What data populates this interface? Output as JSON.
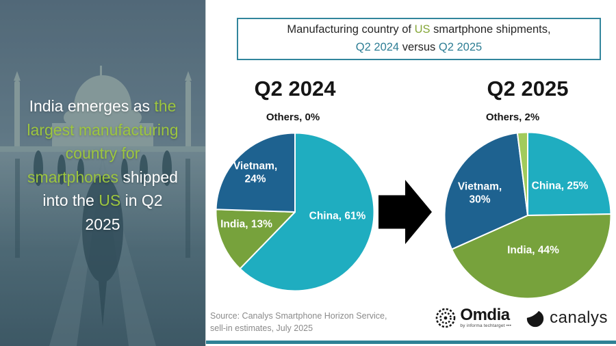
{
  "header": {
    "box_border_color": "#31859C",
    "lines": [
      [
        {
          "text": "Manufacturing country of ",
          "color": "#262626"
        },
        {
          "text": "US",
          "color": "#84A636"
        },
        {
          "text": " smartphone shipments,",
          "color": "#262626"
        }
      ],
      [
        {
          "text": "Q2 2024",
          "color": "#2E7E95"
        },
        {
          "text": " versus ",
          "color": "#262626"
        },
        {
          "text": "Q2 2025",
          "color": "#2E7E95"
        }
      ]
    ]
  },
  "left_panel": {
    "highlight_color": "#9DC63F",
    "text_color": "#FFFFFF",
    "lines": [
      [
        {
          "text": "India emerges as ",
          "color": "#FFFFFF"
        },
        {
          "text": "the",
          "color": "#9DC63F"
        }
      ],
      [
        {
          "text": "largest manufacturing",
          "color": "#9DC63F"
        }
      ],
      [
        {
          "text": "country for",
          "color": "#9DC63F"
        }
      ],
      [
        {
          "text": "smartphones",
          "color": "#9DC63F"
        },
        {
          "text": " shipped",
          "color": "#FFFFFF"
        }
      ],
      [
        {
          "text": "into the ",
          "color": "#FFFFFF"
        },
        {
          "text": "US",
          "color": "#9DC63F"
        },
        {
          "text": " in Q2",
          "color": "#FFFFFF"
        }
      ],
      [
        {
          "text": "2025",
          "color": "#FFFFFF"
        }
      ]
    ]
  },
  "chart_data": [
    {
      "type": "pie",
      "title": "Q2 2024",
      "categories": [
        "China",
        "India",
        "Vietnam",
        "Others"
      ],
      "values": [
        61,
        13,
        24,
        0
      ],
      "colors": [
        "#1FADC0",
        "#77A23C",
        "#1E6290",
        "#A2CB5C"
      ],
      "slice_labels": {
        "china": "China, 61%",
        "india": "India, 13%",
        "vietnam_line1": "Vietnam,",
        "vietnam_line2": "24%",
        "others": "Others, 0%"
      }
    },
    {
      "type": "pie",
      "title": "Q2 2025",
      "categories": [
        "China",
        "India",
        "Vietnam",
        "Others"
      ],
      "values": [
        25,
        44,
        30,
        2
      ],
      "colors": [
        "#1FADC0",
        "#77A23C",
        "#1E6290",
        "#A2CB5C"
      ],
      "slice_labels": {
        "china": "China, 25%",
        "india": "India, 44%",
        "vietnam_line1": "Vietnam,",
        "vietnam_line2": "30%",
        "others": "Others, 2%"
      }
    }
  ],
  "arrow_color": "#000000",
  "source": {
    "line1": "Source: Canalys Smartphone Horizon Service,",
    "line2": "sell-in estimates, July 2025"
  },
  "logos": {
    "omdia": {
      "name": "Omdia",
      "tagline": "by informa techtarget •••"
    },
    "canalys": {
      "name": "canalys"
    }
  },
  "footer_bar_color": "#2E8195"
}
